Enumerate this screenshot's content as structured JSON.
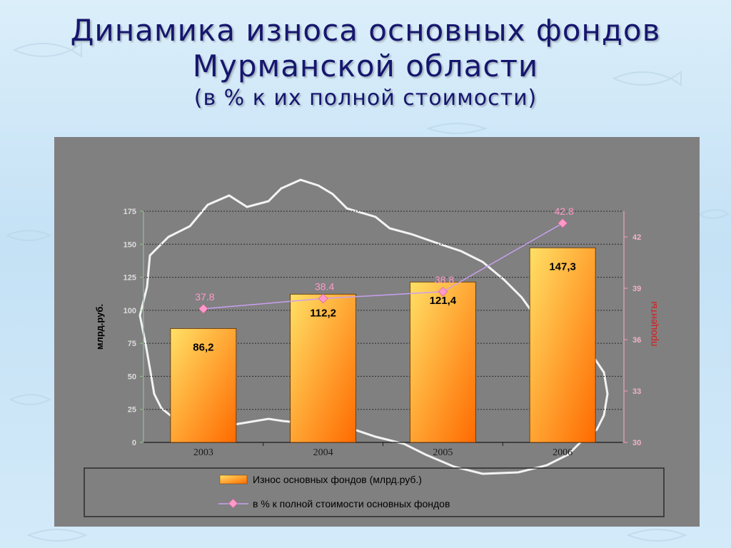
{
  "slide": {
    "title_line1": "Динамика износа основных фондов",
    "title_line2": "Мурманской области",
    "subtitle": "(в % к их полной стоимости)"
  },
  "colors": {
    "panel": "#808080",
    "bar_top": "#ffe066",
    "bar_bottom": "#ff7a00",
    "line": "#c9a0f0",
    "marker": "#ff9ac8"
  },
  "chart_data": {
    "type": "bar",
    "categories": [
      "2003",
      "2004",
      "2005",
      "2006"
    ],
    "ylabel": "млрд.руб.",
    "y2label": "проценты",
    "ylim": [
      0,
      175
    ],
    "y2lim": [
      30,
      43.5
    ],
    "yticks": [
      0,
      25,
      50,
      75,
      100,
      125,
      150,
      175
    ],
    "y2ticks": [
      30,
      33,
      36,
      39,
      42
    ],
    "grid": true,
    "series": [
      {
        "name": "Износ основных фондов (млрд.руб.)",
        "kind": "bar",
        "axis": "left",
        "values": [
          86.2,
          112.2,
          121.4,
          147.3
        ],
        "labels": [
          "86,2",
          "112,2",
          "121,4",
          "147,3"
        ]
      },
      {
        "name": "в % к полной стоимости основных фондов",
        "kind": "line",
        "axis": "right",
        "values": [
          37.8,
          38.4,
          38.8,
          42.8
        ],
        "labels": [
          "37.8",
          "38.4",
          "38.8",
          "42.8"
        ]
      }
    ],
    "legend_position": "bottom"
  }
}
